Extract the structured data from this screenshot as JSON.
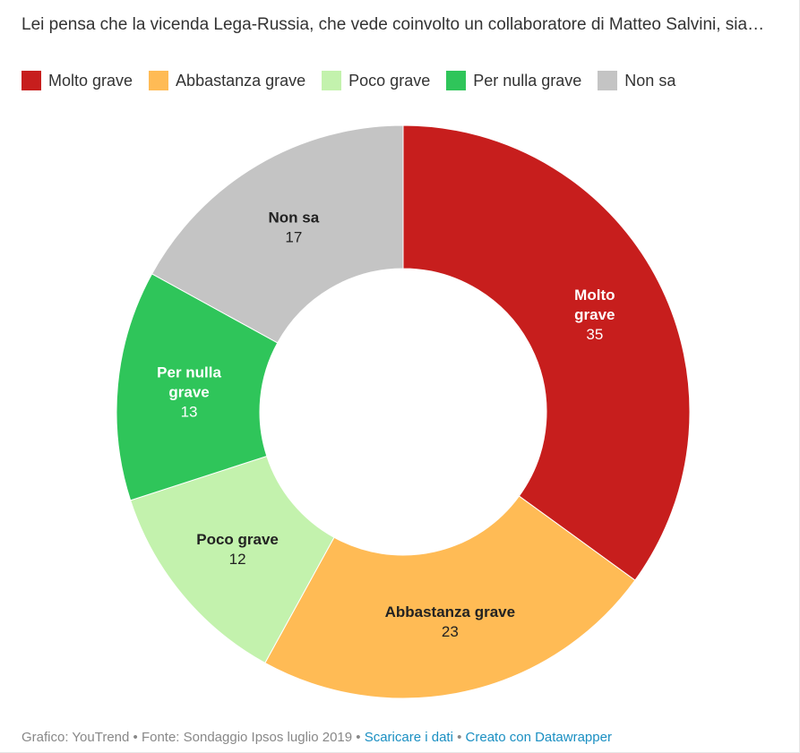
{
  "title": "Lei pensa che la vicenda Lega-Russia, che vede coinvolto un collaboratore di Matteo Salvini, sia…",
  "legend": [
    {
      "label": "Molto grave",
      "color": "#c71e1d"
    },
    {
      "label": "Abbastanza grave",
      "color": "#ffbb55"
    },
    {
      "label": "Poco grave",
      "color": "#c3f2ad"
    },
    {
      "label": "Per nulla grave",
      "color": "#2fc55a"
    },
    {
      "label": "Non sa",
      "color": "#c4c4c4"
    }
  ],
  "chart_data": {
    "type": "pie",
    "donut": true,
    "slices": [
      {
        "label": "Molto grave",
        "label_lines": [
          "Molto",
          "grave"
        ],
        "value": 35,
        "color": "#c71e1d",
        "label_color": "#ffffff"
      },
      {
        "label": "Abbastanza grave",
        "label_lines": [
          "Abbastanza grave"
        ],
        "value": 23,
        "color": "#ffbb55",
        "label_color": "#222222"
      },
      {
        "label": "Poco grave",
        "label_lines": [
          "Poco grave"
        ],
        "value": 12,
        "color": "#c3f2ad",
        "label_color": "#222222"
      },
      {
        "label": "Per nulla grave",
        "label_lines": [
          "Per nulla",
          "grave"
        ],
        "value": 13,
        "color": "#2fc55a",
        "label_color": "#ffffff"
      },
      {
        "label": "Non sa",
        "label_lines": [
          "Non sa"
        ],
        "value": 17,
        "color": "#c4c4c4",
        "label_color": "#222222"
      }
    ]
  },
  "footer": {
    "credit": "Grafico: YouTrend • Fonte: Sondaggio Ipsos luglio 2019 •",
    "download_link": "Scaricare i dati",
    "separator": "•",
    "made_with_link": "Creato con Datawrapper"
  }
}
